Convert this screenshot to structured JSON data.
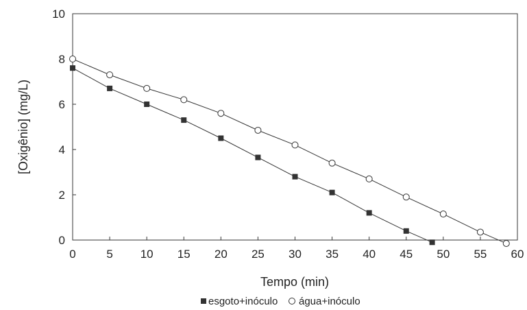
{
  "chart_data": {
    "type": "line",
    "title": "",
    "xlabel": "Tempo (min)",
    "ylabel": "[Oxigênio] (mg/L)",
    "xlim": [
      0,
      60
    ],
    "ylim": [
      0,
      10
    ],
    "x_ticks": [
      0,
      5,
      10,
      15,
      20,
      25,
      30,
      35,
      40,
      45,
      50,
      55,
      60
    ],
    "y_ticks": [
      0,
      2,
      4,
      6,
      8,
      10
    ],
    "grid": false,
    "legend_position": "bottom",
    "series": [
      {
        "name": "esgoto+inóculo",
        "marker": "filled-square",
        "color": "#333333",
        "x": [
          0,
          5,
          10,
          15,
          20,
          25,
          30,
          35,
          40,
          45,
          48.5
        ],
        "y": [
          7.6,
          6.7,
          6.0,
          5.3,
          4.5,
          3.65,
          2.8,
          2.1,
          1.2,
          0.4,
          -0.1
        ]
      },
      {
        "name": "água+inóculo",
        "marker": "open-circle",
        "color": "#333333",
        "x": [
          0,
          5,
          10,
          15,
          20,
          25,
          30,
          35,
          40,
          45,
          50,
          55,
          58.5
        ],
        "y": [
          8.0,
          7.3,
          6.7,
          6.2,
          5.6,
          4.85,
          4.2,
          3.4,
          2.7,
          1.9,
          1.15,
          0.35,
          -0.15
        ]
      }
    ]
  }
}
